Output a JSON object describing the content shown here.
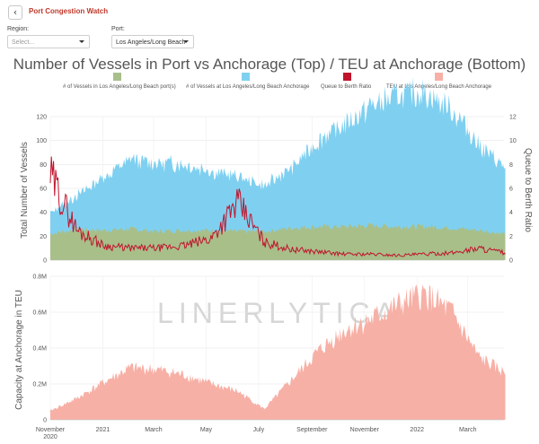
{
  "app": {
    "back_glyph": "‹",
    "title": "Port Congestion Watch"
  },
  "filters": {
    "region": {
      "label": "Region:",
      "placeholder": "Select..."
    },
    "port": {
      "label": "Port:",
      "value": "Los Angeles/Long Beach"
    }
  },
  "watermark": "LINERLYTICA",
  "chart_data": [
    {
      "type": "area",
      "title": "Number of Vessels in Port vs Anchorage (Top) / TEU at Anchorage (Bottom)",
      "ylabel": "Total Number of Vessels",
      "y2label": "Queue to Berth Ratio",
      "ylim": [
        0,
        120
      ],
      "y2lim": [
        0,
        12
      ],
      "yticks": [
        "0",
        "20",
        "40",
        "60",
        "80",
        "100",
        "120"
      ],
      "y2ticks": [
        "0",
        "2",
        "4",
        "6",
        "8",
        "10",
        "12"
      ],
      "grid": true,
      "legend_position": "top",
      "x": [
        "2020-11-01",
        "2020-12-01",
        "2021-01-01",
        "2021-02-01",
        "2021-03-01",
        "2021-04-01",
        "2021-05-01",
        "2021-06-01",
        "2021-07-01",
        "2021-08-01",
        "2021-09-01",
        "2021-10-01",
        "2021-11-01",
        "2021-12-01",
        "2022-01-01",
        "2022-02-01",
        "2022-03-01",
        "2022-04-01"
      ],
      "series": [
        {
          "name": "# of Vessels in Los Angeles/Long Beach port(s)",
          "color": "#a8bf8a",
          "values": [
            22,
            26,
            25,
            26,
            24,
            25,
            25,
            24,
            24,
            27,
            28,
            28,
            29,
            28,
            28,
            27,
            25,
            22
          ]
        },
        {
          "name": "# of Vessels at Los Angeles/Long Beach Anchorage",
          "color": "#7fd0f0",
          "values": [
            18,
            28,
            45,
            58,
            57,
            56,
            50,
            45,
            38,
            50,
            72,
            85,
            100,
            110,
            112,
            100,
            72,
            55
          ]
        },
        {
          "name": "Queue to Berth Ratio",
          "color": "#c0142c",
          "values": [
            7,
            2.5,
            1.2,
            1.0,
            1.0,
            1.2,
            1.8,
            4.8,
            1.5,
            0.9,
            0.7,
            0.5,
            0.5,
            0.4,
            0.5,
            0.6,
            1.0,
            0.6
          ]
        }
      ]
    },
    {
      "type": "area",
      "ylabel": "Capacity at Anchorage in TEU",
      "ylim": [
        0,
        800000
      ],
      "yticks": [
        "0",
        "0.2M",
        "0.4M",
        "0.6M",
        "0.8M"
      ],
      "grid": true,
      "x": [
        "2020-11-01",
        "2020-12-01",
        "2021-01-01",
        "2021-02-01",
        "2021-03-01",
        "2021-04-01",
        "2021-05-01",
        "2021-06-01",
        "2021-07-01",
        "2021-08-01",
        "2021-09-01",
        "2021-10-01",
        "2021-11-01",
        "2021-12-01",
        "2022-01-01",
        "2022-02-01",
        "2022-03-01",
        "2022-04-01"
      ],
      "xticks": [
        {
          "date": "2020-11-01",
          "label": "November",
          "sub": "2020"
        },
        {
          "date": "2021-01-01",
          "label": "2021",
          "sub": ""
        },
        {
          "date": "2021-03-01",
          "label": "March",
          "sub": ""
        },
        {
          "date": "2021-05-01",
          "label": "May",
          "sub": ""
        },
        {
          "date": "2021-07-01",
          "label": "July",
          "sub": ""
        },
        {
          "date": "2021-09-01",
          "label": "September",
          "sub": ""
        },
        {
          "date": "2021-11-01",
          "label": "November",
          "sub": ""
        },
        {
          "date": "2022-01-01",
          "label": "2022",
          "sub": ""
        },
        {
          "date": "2022-03-01",
          "label": "March",
          "sub": ""
        }
      ],
      "series": [
        {
          "name": "TEU at Los Angeles/Long Beach Anchorage",
          "color": "#f7b0a6",
          "values": [
            50000,
            120000,
            210000,
            290000,
            280000,
            250000,
            200000,
            160000,
            60000,
            220000,
            380000,
            500000,
            560000,
            640000,
            700000,
            600000,
            350000,
            260000
          ]
        }
      ]
    }
  ]
}
